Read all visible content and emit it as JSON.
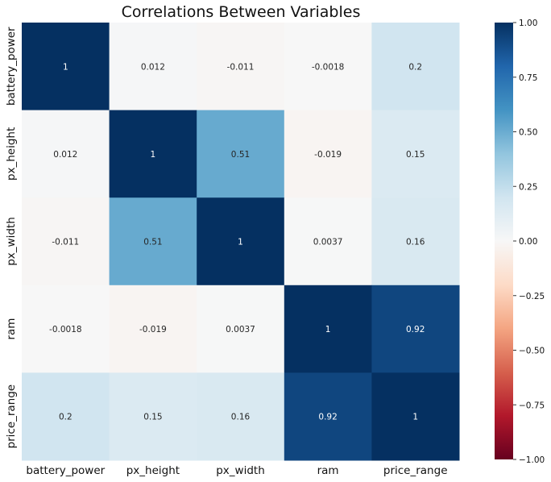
{
  "chart_data": {
    "type": "heatmap",
    "title": "Correlations Between Variables",
    "row_labels": [
      "battery_power",
      "px_height",
      "px_width",
      "ram",
      "price_range"
    ],
    "col_labels": [
      "battery_power",
      "px_height",
      "px_width",
      "ram",
      "price_range"
    ],
    "values": [
      [
        1,
        0.012,
        -0.011,
        -0.0018,
        0.2
      ],
      [
        0.012,
        1,
        0.51,
        -0.019,
        0.15
      ],
      [
        -0.011,
        0.51,
        1,
        0.0037,
        0.16
      ],
      [
        -0.0018,
        -0.019,
        0.0037,
        1,
        0.92
      ],
      [
        0.2,
        0.15,
        0.16,
        0.92,
        1
      ]
    ],
    "annotations": [
      [
        "1",
        "0.012",
        "-0.011",
        "-0.0018",
        "0.2"
      ],
      [
        "0.012",
        "1",
        "0.51",
        "-0.019",
        "0.15"
      ],
      [
        "-0.011",
        "0.51",
        "1",
        "0.0037",
        "0.16"
      ],
      [
        "-0.0018",
        "-0.019",
        "0.0037",
        "1",
        "0.92"
      ],
      [
        "0.2",
        "0.15",
        "0.16",
        "0.92",
        "1"
      ]
    ],
    "colormap": "RdBu",
    "vmin": -1,
    "vmax": 1,
    "colorbar_ticks": [
      1.0,
      0.75,
      0.5,
      0.25,
      0.0,
      -0.25,
      -0.5,
      -0.75,
      -1.0
    ],
    "colorbar_tick_labels": [
      "1.00",
      "0.75",
      "0.50",
      "0.25",
      "0.00",
      "−0.25",
      "−0.50",
      "−0.75",
      "−1.00"
    ],
    "colorbar_placement": "right"
  }
}
